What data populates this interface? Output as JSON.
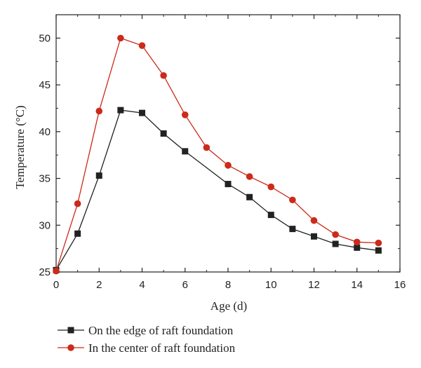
{
  "chart_data": {
    "type": "line",
    "xlabel": "Age (d)",
    "ylabel": "Temperature (°C)",
    "xlim": [
      0,
      16
    ],
    "ylim": [
      25,
      52.5
    ],
    "xticks": [
      0,
      2,
      4,
      6,
      8,
      10,
      12,
      14,
      16
    ],
    "yticks": [
      25,
      30,
      35,
      40,
      45,
      50
    ],
    "grid": false,
    "legend_position": "bottom",
    "series": [
      {
        "name": "On the edge of raft foundation",
        "color": "#222222",
        "marker": "square",
        "x": [
          0,
          1,
          2,
          3,
          4,
          5,
          6,
          8,
          9,
          10,
          11,
          12,
          13,
          14,
          15
        ],
        "y": [
          25.2,
          29.1,
          35.3,
          42.3,
          42.0,
          39.8,
          37.9,
          34.4,
          33.0,
          31.1,
          29.6,
          28.8,
          28.0,
          27.6,
          27.3
        ]
      },
      {
        "name": "In the center of raft foundation",
        "color": "#cc2a1a",
        "marker": "circle",
        "x": [
          0,
          1,
          2,
          3,
          4,
          5,
          6,
          7,
          8,
          9,
          10,
          11,
          12,
          13,
          14,
          15
        ],
        "y": [
          25.1,
          32.3,
          42.2,
          50.0,
          49.2,
          46.0,
          41.8,
          38.3,
          36.4,
          35.2,
          34.1,
          32.7,
          30.5,
          29.0,
          28.2,
          28.1
        ]
      }
    ]
  }
}
